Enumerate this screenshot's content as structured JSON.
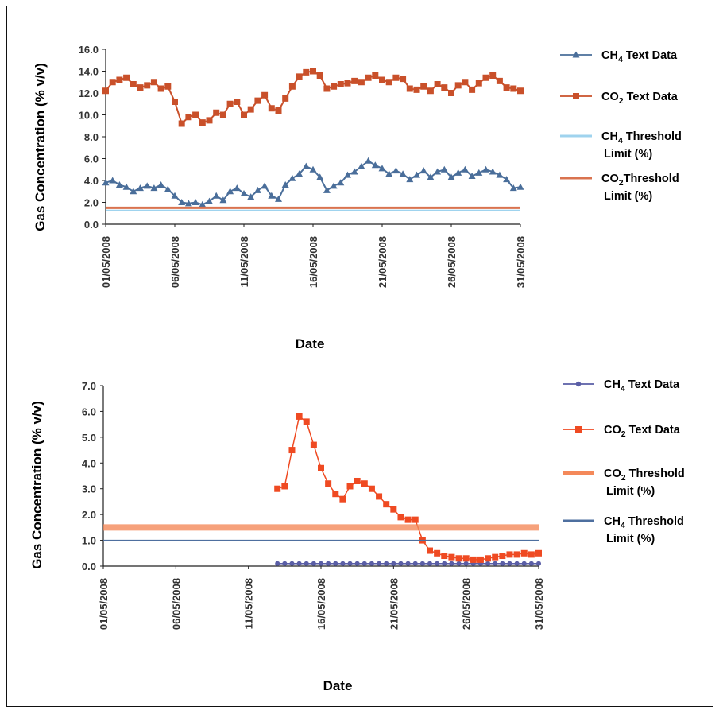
{
  "colors": {
    "ch4": "#4a6e9a",
    "co2": "#c9502a",
    "ch4_threshold": "#9fd3ee",
    "co2_threshold": "#d9734f",
    "co2_b": "#ef4a22",
    "co2_threshold_b": "#f4895a",
    "ch4_b": "#5a5ea6",
    "ch4_threshold_b": "#4e6f9f"
  },
  "chart_data": [
    {
      "type": "line",
      "xlabel": "Date",
      "ylabel": "Gas Concentration (% v/v)",
      "ylim": [
        0,
        16
      ],
      "ytick_labels": [
        "0.0",
        "2.0",
        "4.0",
        "6.0",
        "8.0",
        "10.0",
        "12.0",
        "14.0",
        "16.0"
      ],
      "xlim": [
        0,
        30
      ],
      "xtick_labels": [
        "01/05/2008",
        "06/05/2008",
        "11/05/2008",
        "16/05/2008",
        "21/05/2008",
        "26/05/2008",
        "31/05/2008"
      ],
      "legend_placement": "right",
      "legend": [
        {
          "sub_base": "CH",
          "sub": "4",
          "rest": " Text Data",
          "rest2": ""
        },
        {
          "sub_base": "CO",
          "sub": "2",
          "rest": " Text Data",
          "rest2": ""
        },
        {
          "sub_base": "CH",
          "sub": "4",
          "rest": " Threshold",
          "rest2": "Limit (%)"
        },
        {
          "sub_base": "CO",
          "sub": "2",
          "rest": "Threshold",
          "rest2": "Limit (%)"
        }
      ],
      "series": [
        {
          "name": "CH4 Text Data",
          "marker": "triangle",
          "x": [
            0,
            0.5,
            1,
            1.5,
            2,
            2.5,
            3,
            3.5,
            4,
            4.5,
            5,
            5.5,
            6,
            6.5,
            7,
            7.5,
            8,
            8.5,
            9,
            9.5,
            10,
            10.5,
            11,
            11.5,
            12,
            12.5,
            13,
            13.5,
            14,
            14.5,
            15,
            15.5,
            16,
            16.5,
            17,
            17.5,
            18,
            18.5,
            19,
            19.5,
            20,
            20.5,
            21,
            21.5,
            22,
            22.5,
            23,
            23.5,
            24,
            24.5,
            25,
            25.5,
            26,
            26.5,
            27,
            27.5,
            28,
            28.5,
            29,
            29.5,
            30
          ],
          "y": [
            3.8,
            4.0,
            3.6,
            3.4,
            3.0,
            3.3,
            3.5,
            3.3,
            3.6,
            3.2,
            2.6,
            2.0,
            1.9,
            2.0,
            1.8,
            2.1,
            2.6,
            2.2,
            3.0,
            3.3,
            2.8,
            2.5,
            3.1,
            3.5,
            2.6,
            2.3,
            3.6,
            4.2,
            4.6,
            5.3,
            5.0,
            4.3,
            3.1,
            3.5,
            3.8,
            4.5,
            4.8,
            5.3,
            5.8,
            5.4,
            5.1,
            4.6,
            4.9,
            4.6,
            4.1,
            4.5,
            4.9,
            4.3,
            4.8,
            5.0,
            4.3,
            4.7,
            5.0,
            4.4,
            4.7,
            5.0,
            4.8,
            4.5,
            4.1,
            3.3,
            3.4
          ]
        },
        {
          "name": "CO2 Text Data",
          "marker": "square",
          "x": [
            0,
            0.5,
            1,
            1.5,
            2,
            2.5,
            3,
            3.5,
            4,
            4.5,
            5,
            5.5,
            6,
            6.5,
            7,
            7.5,
            8,
            8.5,
            9,
            9.5,
            10,
            10.5,
            11,
            11.5,
            12,
            12.5,
            13,
            13.5,
            14,
            14.5,
            15,
            15.5,
            16,
            16.5,
            17,
            17.5,
            18,
            18.5,
            19,
            19.5,
            20,
            20.5,
            21,
            21.5,
            22,
            22.5,
            23,
            23.5,
            24,
            24.5,
            25,
            25.5,
            26,
            26.5,
            27,
            27.5,
            28,
            28.5,
            29,
            29.5,
            30
          ],
          "y": [
            12.2,
            13.0,
            13.2,
            13.4,
            12.8,
            12.5,
            12.7,
            13.0,
            12.4,
            12.6,
            11.2,
            9.2,
            9.8,
            10.0,
            9.3,
            9.5,
            10.2,
            10.0,
            11.0,
            11.2,
            10.0,
            10.5,
            11.3,
            11.8,
            10.6,
            10.4,
            11.5,
            12.6,
            13.5,
            13.9,
            14.0,
            13.6,
            12.4,
            12.6,
            12.8,
            12.9,
            13.1,
            13.0,
            13.4,
            13.6,
            13.2,
            13.0,
            13.4,
            13.3,
            12.4,
            12.3,
            12.6,
            12.2,
            12.8,
            12.5,
            12.0,
            12.7,
            13.0,
            12.3,
            12.9,
            13.4,
            13.6,
            13.1,
            12.5,
            12.4,
            12.2
          ]
        },
        {
          "name": "CH4 Threshold Limit (%)",
          "marker": "none",
          "x": [
            0,
            30
          ],
          "y": [
            1.25,
            1.25
          ]
        },
        {
          "name": "CO2Threshold Limit (%)",
          "marker": "none",
          "x": [
            0,
            30
          ],
          "y": [
            1.5,
            1.5
          ]
        }
      ]
    },
    {
      "type": "line",
      "xlabel": "Date",
      "ylabel": "Gas Concentration (% v/v)",
      "ylim": [
        0,
        7
      ],
      "ytick_labels": [
        "0.0",
        "1.0",
        "2.0",
        "3.0",
        "4.0",
        "5.0",
        "6.0",
        "7.0"
      ],
      "xlim": [
        0,
        30
      ],
      "xtick_labels": [
        "01/05/2008",
        "06/05/2008",
        "11/05/2008",
        "16/05/2008",
        "21/05/2008",
        "26/05/2008",
        "31/05/2008"
      ],
      "legend_placement": "right",
      "legend": [
        {
          "sub_base": "CH",
          "sub": "4",
          "rest": " Text Data",
          "rest2": ""
        },
        {
          "sub_base": "CO",
          "sub": "2",
          "rest": " Text Data",
          "rest2": ""
        },
        {
          "sub_base": "CO",
          "sub": "2",
          "rest": " Threshold",
          "rest2": "Limit (%)"
        },
        {
          "sub_base": "CH",
          "sub": "4",
          "rest": " Threshold",
          "rest2": "Limit (%)"
        }
      ],
      "series": [
        {
          "name": "CH4 Text Data",
          "marker": "circle",
          "x": [
            12,
            12.5,
            13,
            13.5,
            14,
            14.5,
            15,
            15.5,
            16,
            16.5,
            17,
            17.5,
            18,
            18.5,
            19,
            19.5,
            20,
            20.5,
            21,
            21.5,
            22,
            22.5,
            23,
            23.5,
            24,
            24.5,
            25,
            25.5,
            26,
            26.5,
            27,
            27.5,
            28,
            28.5,
            29,
            29.5,
            30
          ],
          "y": [
            0.1,
            0.1,
            0.1,
            0.1,
            0.1,
            0.1,
            0.1,
            0.1,
            0.1,
            0.1,
            0.1,
            0.1,
            0.1,
            0.1,
            0.1,
            0.1,
            0.1,
            0.1,
            0.1,
            0.1,
            0.1,
            0.1,
            0.1,
            0.1,
            0.1,
            0.1,
            0.1,
            0.1,
            0.1,
            0.1,
            0.1,
            0.1,
            0.1,
            0.1,
            0.1,
            0.1,
            0.1
          ]
        },
        {
          "name": "CO2 Text Data",
          "marker": "square",
          "x": [
            12,
            12.5,
            13,
            13.5,
            14,
            14.5,
            15,
            15.5,
            16,
            16.5,
            17,
            17.5,
            18,
            18.5,
            19,
            19.5,
            20,
            20.5,
            21,
            21.5,
            22,
            22.5,
            23,
            23.5,
            24,
            24.5,
            25,
            25.5,
            26,
            26.5,
            27,
            27.5,
            28,
            28.5,
            29,
            29.5,
            30
          ],
          "y": [
            3.0,
            3.1,
            4.5,
            5.8,
            5.6,
            4.7,
            3.8,
            3.2,
            2.8,
            2.6,
            3.1,
            3.3,
            3.2,
            3.0,
            2.7,
            2.4,
            2.2,
            1.9,
            1.8,
            1.8,
            1.0,
            0.6,
            0.5,
            0.4,
            0.35,
            0.3,
            0.3,
            0.25,
            0.25,
            0.3,
            0.35,
            0.4,
            0.45,
            0.45,
            0.5,
            0.45,
            0.5
          ]
        },
        {
          "name": "CO2 Threshold Limit (%)",
          "marker": "none",
          "x": [
            0,
            30
          ],
          "y": [
            1.5,
            1.5
          ]
        },
        {
          "name": "CH4 Threshold Limit (%)",
          "marker": "none",
          "x": [
            0,
            30
          ],
          "y": [
            1.0,
            1.0
          ]
        }
      ]
    }
  ]
}
